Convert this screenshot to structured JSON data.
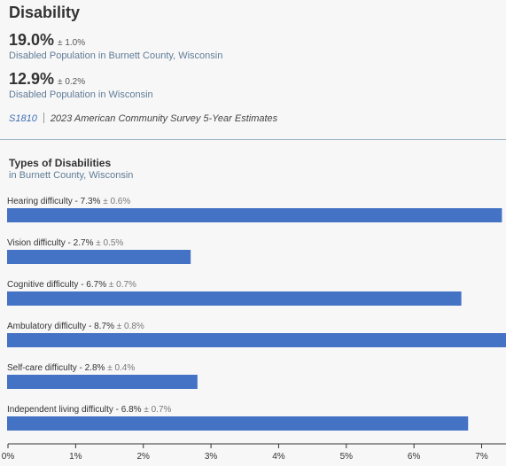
{
  "header": {
    "title": "Disability"
  },
  "stats": [
    {
      "value": "19.0%",
      "moe": "± 1.0%",
      "label": "Disabled Population in Burnett County, Wisconsin"
    },
    {
      "value": "12.9%",
      "moe": "± 0.2%",
      "label": "Disabled Population in Wisconsin"
    }
  ],
  "source": {
    "code": "S1810",
    "text": "2023 American Community Survey 5-Year Estimates"
  },
  "chart_section": {
    "title": "Types of Disabilities",
    "subtitle": "in Burnett County, Wisconsin"
  },
  "colors": {
    "bar": "#4472c4",
    "axis": "#333333"
  },
  "chart_data": {
    "type": "bar",
    "orientation": "horizontal",
    "categories": [
      "Hearing difficulty",
      "Vision difficulty",
      "Cognitive difficulty",
      "Ambulatory difficulty",
      "Self-care difficulty",
      "Independent living difficulty"
    ],
    "values": [
      7.3,
      2.7,
      6.7,
      8.7,
      2.8,
      6.8
    ],
    "value_labels": [
      "7.3%",
      "2.7%",
      "6.7%",
      "8.7%",
      "2.8%",
      "6.8%"
    ],
    "moe_labels": [
      "± 0.6%",
      "± 0.5%",
      "± 0.7%",
      "± 0.8%",
      "± 0.4%",
      "± 0.7%"
    ],
    "xlim": [
      0,
      7.36
    ],
    "x_ticks": [
      0,
      1,
      2,
      3,
      4,
      5,
      6,
      7
    ],
    "x_tick_labels": [
      "0%",
      "1%",
      "2%",
      "3%",
      "4%",
      "5%",
      "6%",
      "7%"
    ],
    "grid": false
  }
}
